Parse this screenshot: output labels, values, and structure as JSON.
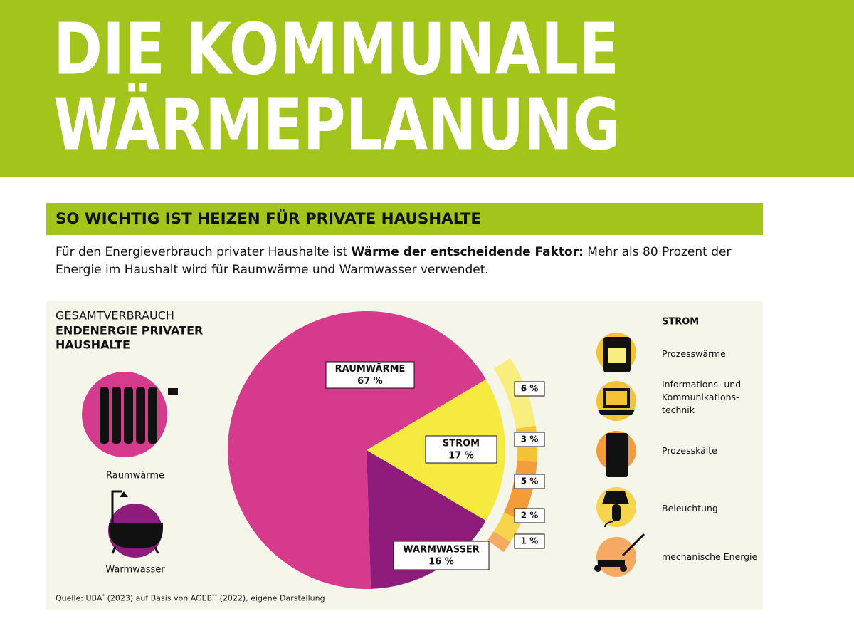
{
  "header": {
    "title_lines": [
      "DIE KOMMUNALE",
      "WÄRMEPLANUNG"
    ]
  },
  "section": {
    "heading": "SO WICHTIG IST HEIZEN FÜR PRIVATE HAUSHALTE",
    "intro": [
      "Für den Energieverbrauch privater Haushalte ist ",
      "Wärme der entscheidende Faktor:",
      " Mehr als 80 Prozent der Energie im Haushalt wird für Raumwärme und Warmwasser verwendet."
    ]
  },
  "chart_data": {
    "type": "pie",
    "title": "GESAMTVERBRAUCH",
    "subtitle_lines": [
      "ENDENERGIE PRIVATER",
      "HAUSHALTE"
    ],
    "categories": [
      "RAUMWÄRME",
      "STROM",
      "WARMWASSER"
    ],
    "values": [
      67,
      17,
      16
    ],
    "value_labels": [
      "67 %",
      "17 %",
      "16 %"
    ],
    "colors": [
      "#d53a8d",
      "#f6e93f",
      "#8f1b7b"
    ],
    "icon_labels": [
      "Raumwärme",
      "Warmwasser"
    ],
    "breakdown": {
      "title": "STROM",
      "categories": [
        "Prozesswärme",
        "Informations- und Kommunikations­technik",
        "Prozesskälte",
        "Beleuchtung",
        "mechanische Energie"
      ],
      "values": [
        6,
        3,
        5,
        2,
        1
      ],
      "value_labels": [
        "6 %",
        "3 %",
        "5 %",
        "2 %",
        "1 %"
      ],
      "colors": [
        "#f8ee7e",
        "#f4c335",
        "#f29c3c",
        "#f6d54a",
        "#f5a962"
      ]
    },
    "source": [
      "Quelle: UBA",
      "*",
      " (2023) auf Basis von AGEB",
      "**",
      " (2022), eigene Darstellung"
    ]
  }
}
